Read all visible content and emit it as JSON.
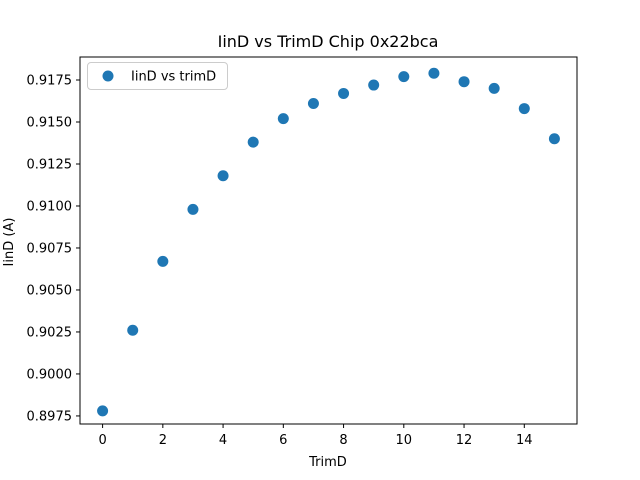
{
  "chart_data": {
    "type": "scatter",
    "title": "IinD vs TrimD Chip 0x22bca",
    "xlabel": "TrimD",
    "ylabel": "IinD (A)",
    "legend": [
      "IinD vs trimD"
    ],
    "legend_position": "upper left",
    "marker_color": "#1f77b4",
    "marker_shape": "circle",
    "background_color": "#ffffff",
    "spine_color": "#000000",
    "grid": false,
    "x": [
      0,
      1,
      2,
      3,
      4,
      5,
      6,
      7,
      8,
      9,
      10,
      11,
      12,
      13,
      14,
      15
    ],
    "y": [
      0.8978,
      0.9026,
      0.9067,
      0.9098,
      0.9118,
      0.9138,
      0.9152,
      0.9161,
      0.9167,
      0.9172,
      0.9177,
      0.9179,
      0.9174,
      0.917,
      0.9158,
      0.914
    ],
    "xticks": [
      0,
      2,
      4,
      6,
      8,
      10,
      12,
      14
    ],
    "yticks": [
      0.8975,
      0.9,
      0.9025,
      0.905,
      0.9075,
      0.91,
      0.9125,
      0.915,
      0.9175
    ],
    "ytick_decimals": 4,
    "xlim": [
      -0.75,
      15.75
    ],
    "ylim": [
      0.89702,
      0.91887
    ]
  }
}
